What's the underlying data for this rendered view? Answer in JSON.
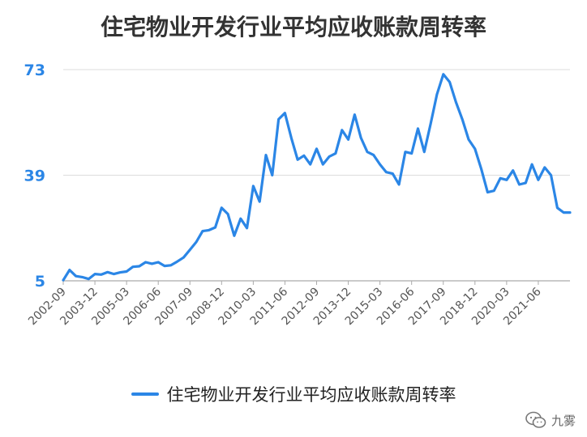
{
  "title": "住宅物业开发行业平均应收账款周转率",
  "legend": {
    "label": "住宅物业开发行业平均应收账款周转率"
  },
  "watermark": {
    "text": "九雾",
    "icon": "wechat-icon"
  },
  "colors": {
    "line": "#2b86e6",
    "ytick": "#2b86e6",
    "grid": "#dcdcdc",
    "axis": "#aaaaaa"
  },
  "chart_data": {
    "type": "line",
    "title": "住宅物业开发行业平均应收账款周转率",
    "xlabel": "",
    "ylabel": "",
    "ylim": [
      5,
      73
    ],
    "yticks": [
      5,
      39,
      73
    ],
    "grid": true,
    "legend_position": "bottom",
    "xtick_labels": [
      "2002-09",
      "2003-12",
      "2005-03",
      "2006-06",
      "2007-09",
      "2008-12",
      "2010-03",
      "2011-06",
      "2012-09",
      "2013-12",
      "2015-03",
      "2016-06",
      "2017-09",
      "2018-12",
      "2020-03",
      "2021-06"
    ],
    "series": [
      {
        "name": "住宅物业开发行业平均应收账款周转率",
        "x": [
          "2002-09",
          "2002-12",
          "2003-03",
          "2003-06",
          "2003-09",
          "2003-12",
          "2004-03",
          "2004-06",
          "2004-09",
          "2004-12",
          "2005-03",
          "2005-06",
          "2005-09",
          "2005-12",
          "2006-03",
          "2006-06",
          "2006-09",
          "2006-12",
          "2007-03",
          "2007-06",
          "2007-09",
          "2007-12",
          "2008-03",
          "2008-06",
          "2008-09",
          "2008-12",
          "2009-03",
          "2009-06",
          "2009-09",
          "2009-12",
          "2010-03",
          "2010-06",
          "2010-09",
          "2010-12",
          "2011-03",
          "2011-06",
          "2011-09",
          "2011-12",
          "2012-03",
          "2012-06",
          "2012-09",
          "2012-12",
          "2013-03",
          "2013-06",
          "2013-09",
          "2013-12",
          "2014-03",
          "2014-06",
          "2014-09",
          "2014-12",
          "2015-03",
          "2015-06",
          "2015-09",
          "2015-12",
          "2016-03",
          "2016-06",
          "2016-09",
          "2016-12",
          "2017-03",
          "2017-06",
          "2017-09",
          "2017-12",
          "2018-03",
          "2018-06",
          "2018-09",
          "2018-12",
          "2019-03",
          "2019-06",
          "2019-09",
          "2019-12",
          "2020-03",
          "2020-06",
          "2020-09",
          "2020-12",
          "2021-03",
          "2021-06",
          "2021-09",
          "2021-12",
          "2022-03",
          "2022-06",
          "2022-09"
        ],
        "values": [
          5.2,
          8.5,
          6.5,
          6.2,
          5.6,
          7.2,
          7.0,
          7.8,
          7.2,
          7.7,
          8.0,
          9.5,
          9.7,
          11.0,
          10.5,
          11.0,
          9.8,
          10.0,
          11.2,
          12.5,
          15.0,
          17.5,
          21.0,
          21.3,
          22.2,
          28.5,
          26.5,
          19.5,
          25.0,
          22.0,
          35.5,
          30.5,
          45.5,
          39.0,
          57.0,
          59.0,
          51.0,
          44.0,
          45.3,
          42.5,
          47.5,
          42.5,
          45.0,
          46.0,
          53.5,
          50.5,
          58.5,
          51.0,
          46.5,
          45.5,
          42.5,
          40.0,
          39.5,
          36.0,
          46.5,
          46.0,
          54.0,
          46.5,
          55.5,
          65.0,
          71.5,
          69.0,
          62.5,
          57.0,
          50.5,
          47.5,
          41.0,
          33.5,
          34.0,
          38.0,
          37.5,
          40.5,
          36.0,
          36.5,
          42.5,
          37.5,
          41.5,
          39.0,
          28.5,
          27.0,
          27.0
        ]
      }
    ]
  }
}
